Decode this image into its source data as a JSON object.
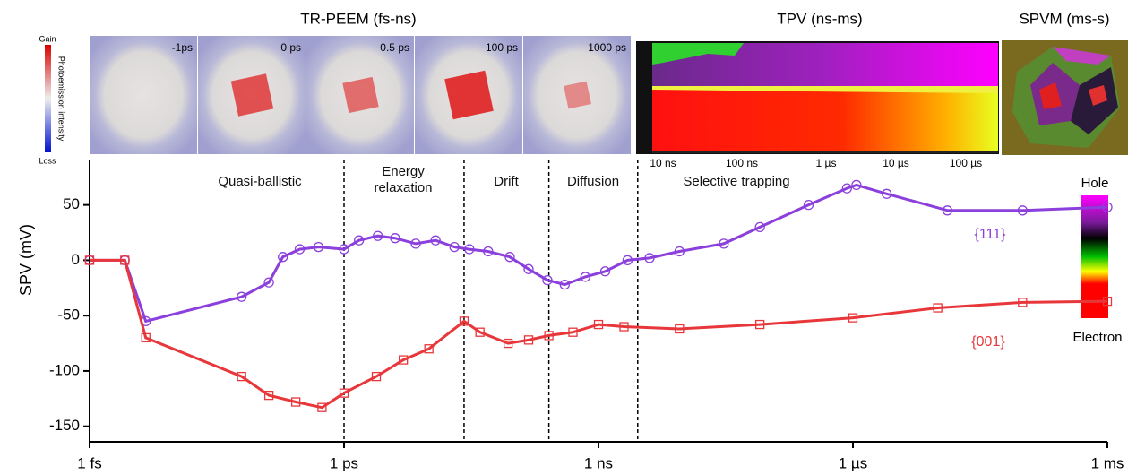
{
  "chart_data": {
    "type": "line",
    "y_label": "SPV (mV)",
    "log_x": true,
    "xlim": [
      1e-15,
      0.001
    ],
    "xticks": [
      {
        "value": 1e-15,
        "label": "1 fs"
      },
      {
        "value": 1e-12,
        "label": "1 ps"
      },
      {
        "value": 1e-09,
        "label": "1 ns"
      },
      {
        "value": 1e-06,
        "label": "1 µs"
      },
      {
        "value": 0.001,
        "label": "1 ms"
      }
    ],
    "ylim": [
      -164,
      91
    ],
    "yticks": [
      -150,
      -100,
      -50,
      0,
      50
    ],
    "region_boundaries": [
      1e-12,
      2.6e-11,
      2.6e-10,
      2.9e-09
    ],
    "region_labels": [
      "Quasi-ballistic",
      "Energy relaxation",
      "Drift",
      "Diffusion",
      "Selective trapping"
    ],
    "series": [
      {
        "name": "{111}",
        "color": "#8b3fdc",
        "marker": "circle",
        "x": [
          1e-15,
          2.6e-15,
          4.6e-15,
          6.2e-14,
          1.3e-13,
          1.9e-13,
          3e-13,
          5e-13,
          1e-12,
          1.5e-12,
          2.5e-12,
          4e-12,
          7e-12,
          1.2e-11,
          2e-11,
          3e-11,
          5e-11,
          9e-11,
          1.5e-10,
          2.5e-10,
          4e-10,
          7e-10,
          1.2e-09,
          2.2e-09,
          4e-09,
          9e-09,
          3e-08,
          8e-08,
          3e-07,
          8.5e-07,
          1.1e-06,
          2.5e-06,
          1.3e-05,
          0.0001,
          0.001
        ],
        "values": [
          0,
          0,
          -55,
          -33,
          -20,
          3,
          10,
          12,
          10,
          18,
          22,
          20,
          15,
          18,
          12,
          10,
          8,
          3,
          -8,
          -18,
          -22,
          -15,
          -10,
          0,
          2,
          8,
          15,
          30,
          50,
          65,
          68,
          60,
          45,
          45,
          48
        ]
      },
      {
        "name": "{001}",
        "color": "#e8373a",
        "marker": "square",
        "x": [
          1e-15,
          2.6e-15,
          4.6e-15,
          6.2e-14,
          1.3e-13,
          2.7e-13,
          5.5e-13,
          1e-12,
          2.4e-12,
          5e-12,
          1e-11,
          2.6e-11,
          4e-11,
          8.6e-11,
          1.5e-10,
          2.6e-10,
          5e-10,
          1e-09,
          2e-09,
          9e-09,
          8e-08,
          1e-06,
          1e-05,
          0.0001,
          0.001
        ],
        "values": [
          0,
          0,
          -70,
          -105,
          -122,
          -128,
          -133,
          -120,
          -105,
          -90,
          -80,
          -55,
          -65,
          -75,
          -72,
          -68,
          -65,
          -58,
          -60,
          -62,
          -58,
          -52,
          -43,
          -38,
          -37
        ]
      }
    ],
    "colorbar": {
      "top": "Hole",
      "bottom": "Electron"
    }
  },
  "insets": {
    "tr_peem": {
      "title": "TR-PEEM (fs-ns)",
      "frames": [
        "-1ps",
        "0 ps",
        "0.5 ps",
        "100 ps",
        "1000 ps"
      ],
      "scale_top": "Gain",
      "scale_bottom": "Loss",
      "scale_label": "Photoemission intensity"
    },
    "tpv": {
      "title": "TPV (ns-ms)",
      "axis_labels": [
        "10 ns",
        "100 ns",
        "1 µs",
        "10 µs",
        "100 µs"
      ]
    },
    "spvm": {
      "title": "SPVM (ms-s)"
    }
  }
}
